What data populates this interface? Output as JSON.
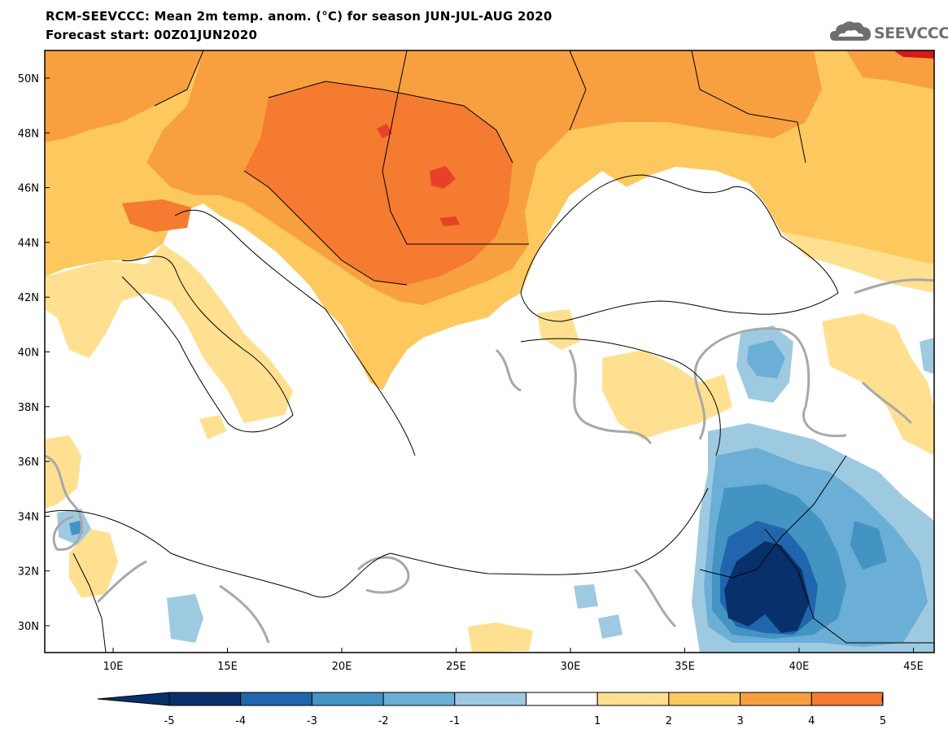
{
  "title": {
    "line1": "RCM-SEEVCCC: Mean 2m temp. anom. (°C) for season JUN-JUL-AUG 2020",
    "line2": "Forecast start: 00Z01JUN2020"
  },
  "logo": {
    "text": "SEEVCCC",
    "icon": "cloud-logo-icon"
  },
  "colors": {
    "lv_m5": "#08306b",
    "lv_m4": "#2166ac",
    "lv_m3": "#4393c3",
    "lv_m2": "#6baed6",
    "lv_m1": "#9ecae1",
    "neutral": "#ffffff",
    "lv_p1": "#fee090",
    "lv_p2": "#fdc95e",
    "lv_p3": "#f8a040",
    "lv_p4": "#f47b30",
    "lv_p5": "#e8412a",
    "lv_p6": "#d7191c",
    "contour": "#a8a8a8",
    "border": "#000000"
  },
  "map": {
    "lat_labels": [
      "50N",
      "48N",
      "46N",
      "44N",
      "42N",
      "40N",
      "38N",
      "36N",
      "34N",
      "32N",
      "30N"
    ],
    "lon_labels": [
      "10E",
      "15E",
      "20E",
      "25E",
      "30E",
      "35E",
      "40E",
      "45E"
    ]
  },
  "colorbar": {
    "labels": [
      "-5",
      "-4",
      "-3",
      "-2",
      "-1",
      "1",
      "2",
      "3",
      "4",
      "5"
    ]
  }
}
